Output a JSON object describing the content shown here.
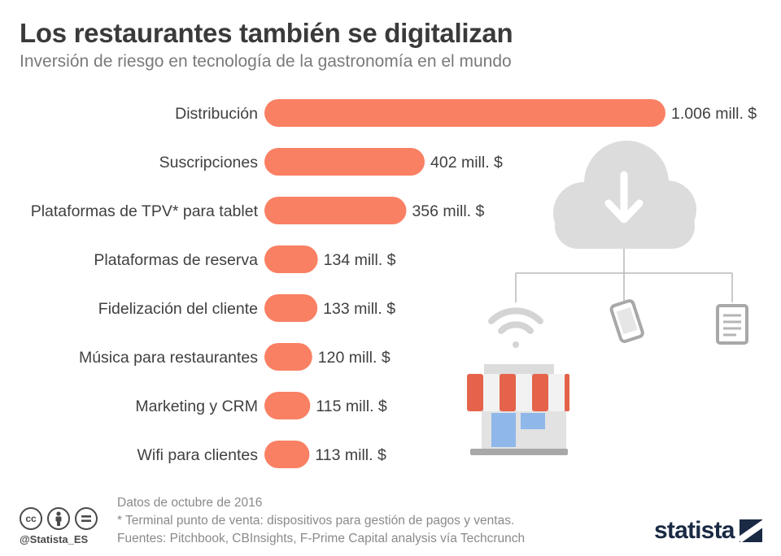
{
  "header": {
    "title": "Los restaurantes también se digitalizan",
    "subtitle": "Inversión de riesgo en tecnología de la gastronomía en el mundo"
  },
  "chart_data": {
    "type": "bar",
    "orientation": "horizontal",
    "categories": [
      "Distribución",
      "Suscripciones",
      "Plataformas de TPV* para tablet",
      "Plataformas de reserva",
      "Fidelización del cliente",
      "Música para restaurantes",
      "Marketing y CRM",
      "Wifi para clientes"
    ],
    "values": [
      1006,
      402,
      356,
      134,
      133,
      120,
      115,
      113
    ],
    "value_labels": [
      "1.006 mill. $",
      "402 mill. $",
      "356 mill. $",
      "134 mill. $",
      "133 mill. $",
      "120 mill. $",
      "115 mill. $",
      "113 mill. $"
    ],
    "unit": "mill. $",
    "bar_color": "#fa8064",
    "grid": false,
    "legend": "none"
  },
  "footer": {
    "notes": [
      "Datos de octubre de 2016",
      "* Terminal punto de venta: dispositivos para gestión de pagos y ventas.",
      "Fuentes: Pitchbook, CBInsights, F-Prime Capital analysis vía Techcrunch"
    ],
    "handle": "@Statista_ES",
    "license_icons": [
      "cc",
      "by",
      "nd"
    ],
    "brand": "statista"
  },
  "illustration": {
    "icons": [
      "cloud-download-icon",
      "wifi-icon",
      "smartphone-icon",
      "tablet-icon",
      "storefront-icon"
    ]
  }
}
